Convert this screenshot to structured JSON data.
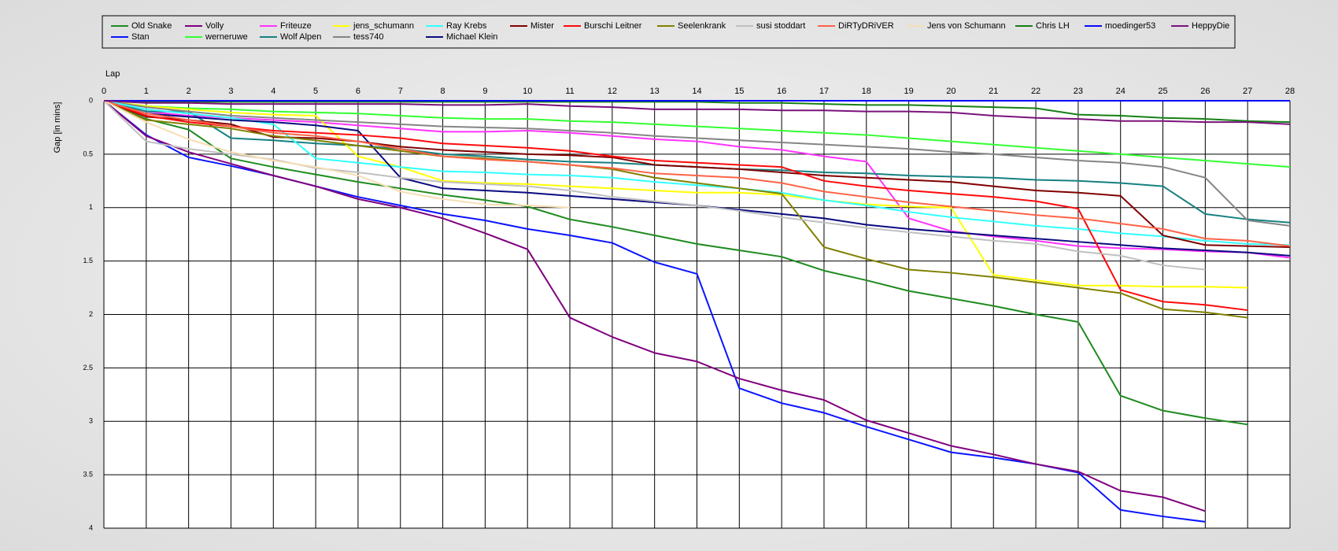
{
  "chart_data": {
    "type": "line",
    "xlabel": "Lap",
    "ylabel": "Gap [in mins]",
    "x": [
      0,
      1,
      2,
      3,
      4,
      5,
      6,
      7,
      8,
      9,
      10,
      11,
      12,
      13,
      14,
      15,
      16,
      17,
      18,
      19,
      20,
      21,
      22,
      23,
      24,
      25,
      26,
      27,
      28
    ],
    "xlim": [
      0,
      28
    ],
    "xticks": [
      0,
      1,
      2,
      3,
      4,
      5,
      6,
      7,
      8,
      9,
      10,
      11,
      12,
      13,
      14,
      15,
      16,
      17,
      18,
      19,
      20,
      21,
      22,
      23,
      24,
      25,
      26,
      27,
      28
    ],
    "ylim": [
      0,
      4
    ],
    "yticks": [
      0,
      0.5,
      1,
      1.5,
      2,
      2.5,
      3,
      3.5,
      4
    ],
    "y_inverted": true,
    "grid": true,
    "series": [
      {
        "name": "Old Snake",
        "color": "#1f8b1f",
        "values": [
          0,
          0.17,
          0.27,
          0.54,
          0.62,
          0.69,
          0.76,
          0.82,
          0.88,
          0.93,
          0.99,
          1.11,
          1.18,
          1.26,
          1.34,
          1.4,
          1.46,
          1.59,
          1.68,
          1.78,
          1.85,
          1.92,
          2.0,
          2.07,
          2.76,
          2.9,
          2.97,
          3.03,
          null
        ]
      },
      {
        "name": "Stan",
        "color": "#0a14ff",
        "values": [
          0,
          0.32,
          0.53,
          0.61,
          0.7,
          0.8,
          0.9,
          0.98,
          1.06,
          1.12,
          1.2,
          1.26,
          1.33,
          1.51,
          1.62,
          2.69,
          2.83,
          2.92,
          3.05,
          3.17,
          3.29,
          3.34,
          3.4,
          3.48,
          3.83,
          3.89,
          3.94,
          null,
          null
        ]
      },
      {
        "name": "Volly",
        "color": "#80007f",
        "values": [
          0,
          0.33,
          0.48,
          0.59,
          0.7,
          0.8,
          0.92,
          1.0,
          1.1,
          1.24,
          1.39,
          2.03,
          2.21,
          2.36,
          2.44,
          2.6,
          2.71,
          2.8,
          2.99,
          3.11,
          3.23,
          3.31,
          3.4,
          3.47,
          3.65,
          3.71,
          3.84,
          null,
          null
        ]
      },
      {
        "name": "werneruwe",
        "color": "#33ff33",
        "values": [
          0,
          0.05,
          0.07,
          0.08,
          0.1,
          0.11,
          0.12,
          0.14,
          0.16,
          0.17,
          0.17,
          0.19,
          0.2,
          0.22,
          0.24,
          0.26,
          0.28,
          0.3,
          0.32,
          0.35,
          0.38,
          0.41,
          0.44,
          0.47,
          0.5,
          0.53,
          0.56,
          0.59,
          0.62
        ]
      },
      {
        "name": "Friteuze",
        "color": "#ff33ff",
        "values": [
          0,
          0.1,
          0.14,
          0.16,
          0.18,
          0.2,
          0.23,
          0.26,
          0.29,
          0.29,
          0.28,
          0.3,
          0.33,
          0.36,
          0.38,
          0.43,
          0.46,
          0.52,
          0.57,
          1.1,
          1.22,
          1.27,
          1.31,
          1.36,
          1.38,
          1.39,
          1.41,
          1.42,
          1.47
        ]
      },
      {
        "name": "Wolf Alpen",
        "color": "#168080",
        "values": [
          0,
          0.1,
          0.1,
          0.35,
          0.37,
          0.4,
          0.42,
          0.45,
          0.5,
          0.52,
          0.55,
          0.57,
          0.58,
          0.6,
          0.62,
          0.64,
          0.65,
          0.67,
          0.68,
          0.7,
          0.71,
          0.72,
          0.74,
          0.75,
          0.77,
          0.8,
          1.06,
          1.11,
          1.14
        ]
      },
      {
        "name": "jens_schumann",
        "color": "#ffff00",
        "values": [
          0,
          0.05,
          0.08,
          0.11,
          0.13,
          0.14,
          0.52,
          0.62,
          0.75,
          0.77,
          0.78,
          0.8,
          0.82,
          0.84,
          0.86,
          0.86,
          0.88,
          0.93,
          0.97,
          0.99,
          1.0,
          1.63,
          1.68,
          1.73,
          1.73,
          1.74,
          1.74,
          1.75,
          null
        ]
      },
      {
        "name": "tess740",
        "color": "#858585",
        "values": [
          0,
          0.06,
          0.1,
          0.14,
          0.16,
          0.18,
          0.2,
          0.22,
          0.24,
          0.25,
          0.26,
          0.28,
          0.3,
          0.33,
          0.35,
          0.37,
          0.39,
          0.41,
          0.43,
          0.45,
          0.48,
          0.5,
          0.53,
          0.56,
          0.58,
          0.62,
          0.72,
          1.12,
          1.17
        ]
      },
      {
        "name": "Ray Krebs",
        "color": "#33ffff",
        "values": [
          0,
          0.08,
          0.12,
          0.16,
          0.22,
          0.54,
          0.58,
          0.62,
          0.66,
          0.67,
          0.69,
          0.7,
          0.72,
          0.76,
          0.79,
          0.82,
          0.86,
          0.93,
          0.98,
          1.04,
          1.09,
          1.13,
          1.17,
          1.2,
          1.24,
          1.27,
          1.31,
          1.34,
          1.35
        ]
      },
      {
        "name": "Michael Klein",
        "color": "#0a0a80",
        "values": [
          0,
          0.12,
          0.15,
          0.18,
          0.2,
          0.23,
          0.28,
          0.72,
          0.82,
          0.84,
          0.86,
          0.89,
          0.92,
          0.95,
          0.98,
          1.02,
          1.06,
          1.1,
          1.16,
          1.2,
          1.23,
          1.26,
          1.29,
          1.32,
          1.35,
          1.38,
          1.4,
          1.42,
          1.45
        ]
      },
      {
        "name": "Mister",
        "color": "#800000",
        "values": [
          0,
          0.15,
          0.18,
          0.22,
          0.34,
          0.35,
          0.38,
          0.43,
          0.46,
          0.48,
          0.5,
          0.51,
          0.53,
          0.6,
          0.62,
          0.64,
          0.67,
          0.7,
          0.72,
          0.74,
          0.76,
          0.8,
          0.84,
          0.86,
          0.89,
          1.26,
          1.35,
          1.36,
          1.37
        ]
      },
      {
        "name": "Burschi Leitner",
        "color": "#ff0a0a",
        "values": [
          0,
          0.14,
          0.2,
          0.24,
          0.28,
          0.3,
          0.32,
          0.35,
          0.4,
          0.42,
          0.44,
          0.47,
          0.52,
          0.56,
          0.58,
          0.6,
          0.62,
          0.75,
          0.8,
          0.84,
          0.87,
          0.9,
          0.94,
          1.01,
          1.77,
          1.88,
          1.91,
          1.96,
          null
        ]
      },
      {
        "name": "Seelenkrank",
        "color": "#808000",
        "values": [
          0,
          0.18,
          0.22,
          0.26,
          0.33,
          0.37,
          0.42,
          0.47,
          0.52,
          0.54,
          0.57,
          0.6,
          0.64,
          0.72,
          0.77,
          0.82,
          0.87,
          1.37,
          1.48,
          1.58,
          1.61,
          1.65,
          1.7,
          1.75,
          1.8,
          1.95,
          1.98,
          2.03,
          null
        ]
      },
      {
        "name": "susi stoddart",
        "color": "#c0c0c0",
        "values": [
          0,
          0.38,
          0.45,
          0.5,
          0.55,
          0.63,
          0.67,
          0.72,
          0.76,
          0.78,
          0.8,
          0.84,
          0.9,
          0.94,
          0.98,
          1.03,
          1.09,
          1.14,
          1.19,
          1.23,
          1.27,
          1.31,
          1.34,
          1.41,
          1.45,
          1.54,
          1.58,
          null,
          null
        ]
      },
      {
        "name": "DiRTyDRiVER",
        "color": "#ff6347",
        "values": [
          0,
          0.12,
          0.18,
          0.24,
          0.3,
          0.33,
          0.38,
          0.45,
          0.52,
          0.55,
          0.57,
          0.6,
          0.63,
          0.68,
          0.7,
          0.72,
          0.77,
          0.85,
          0.9,
          0.95,
          0.99,
          1.03,
          1.07,
          1.1,
          1.15,
          1.2,
          1.29,
          1.31,
          1.36
        ]
      },
      {
        "name": "Jens von Schumann",
        "color": "#f5deb3",
        "values": [
          0,
          0.2,
          0.36,
          0.48,
          0.56,
          0.62,
          0.7,
          0.85,
          0.92,
          0.97,
          0.98,
          1.0,
          null,
          null,
          null,
          null,
          null,
          null,
          null,
          null,
          null,
          null,
          null,
          null,
          null,
          null,
          null,
          null,
          null
        ]
      },
      {
        "name": "Chris LH",
        "color": "#168016",
        "values": [
          0,
          0.01,
          0.01,
          0.01,
          0.01,
          0.01,
          0.01,
          0.01,
          0.01,
          0.01,
          0.01,
          0.01,
          0.01,
          0.01,
          0.01,
          0.02,
          0.02,
          0.03,
          0.04,
          0.04,
          0.05,
          0.06,
          0.07,
          0.13,
          0.14,
          0.16,
          0.17,
          0.19,
          0.2
        ]
      },
      {
        "name": "moedinger53",
        "color": "#0a0aff",
        "values": [
          0,
          0,
          0,
          0,
          0,
          0,
          0,
          0,
          0,
          0,
          0,
          0,
          0,
          0,
          0,
          0,
          0,
          0,
          0,
          0,
          0,
          0,
          0,
          0,
          0,
          0,
          0,
          0,
          0
        ]
      },
      {
        "name": "HeppyDie",
        "color": "#7a127a",
        "values": [
          0,
          0.02,
          0.02,
          0.03,
          0.03,
          0.03,
          0.03,
          0.03,
          0.04,
          0.04,
          0.03,
          0.05,
          0.06,
          0.08,
          0.08,
          0.08,
          0.09,
          0.09,
          0.1,
          0.1,
          0.11,
          0.14,
          0.16,
          0.17,
          0.19,
          0.19,
          0.2,
          0.2,
          0.22
        ]
      }
    ]
  }
}
